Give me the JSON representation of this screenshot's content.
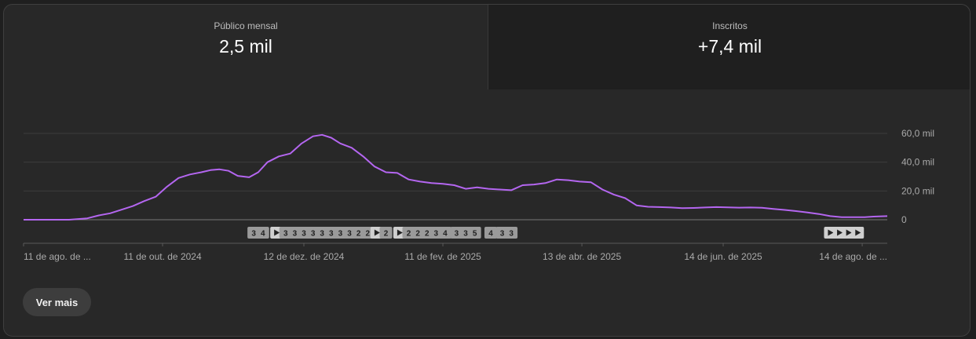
{
  "tabs": [
    {
      "label": "Público mensal",
      "value": "2,5 mil"
    },
    {
      "label": "Inscritos",
      "value": "+7,4 mil"
    }
  ],
  "more_button": "Ver mais",
  "colors": {
    "line": "#b466f0",
    "grid": "#3c3c3c",
    "axis_text": "#aaaaaa",
    "marker": "#9a9a9a"
  },
  "chart_data": {
    "type": "line",
    "x_start": "11 de ago. de 2024",
    "x_end": "25 de ago. de 2025",
    "ylim": [
      0,
      60000
    ],
    "yticks": [
      {
        "value": 0,
        "label": "0"
      },
      {
        "value": 20000,
        "label": "20,0 mil"
      },
      {
        "value": 40000,
        "label": "40,0 mil"
      },
      {
        "value": 60000,
        "label": "60,0 mil"
      }
    ],
    "xticks": [
      {
        "date": "2024-08-11",
        "label": "11 de ago. de ..."
      },
      {
        "date": "2024-10-11",
        "label": "11 de out. de 2024"
      },
      {
        "date": "2024-12-12",
        "label": "12 de dez. de 2024"
      },
      {
        "date": "2025-02-11",
        "label": "11 de fev. de 2025"
      },
      {
        "date": "2025-04-13",
        "label": "13 de abr. de 2025"
      },
      {
        "date": "2025-06-14",
        "label": "14 de jun. de 2025"
      },
      {
        "date": "2025-08-14",
        "label": "14 de ago. de ..."
      }
    ],
    "series": [
      {
        "points": [
          [
            "2024-08-11",
            0
          ],
          [
            "2024-08-17",
            0
          ],
          [
            "2024-08-25",
            0
          ],
          [
            "2024-08-31",
            0
          ],
          [
            "2024-09-04",
            500
          ],
          [
            "2024-09-08",
            1000
          ],
          [
            "2024-09-13",
            3000
          ],
          [
            "2024-09-18",
            4500
          ],
          [
            "2024-09-23",
            7000
          ],
          [
            "2024-09-28",
            9500
          ],
          [
            "2024-10-03",
            13000
          ],
          [
            "2024-10-08",
            16000
          ],
          [
            "2024-10-13",
            23000
          ],
          [
            "2024-10-18",
            29000
          ],
          [
            "2024-10-23",
            31500
          ],
          [
            "2024-10-28",
            33000
          ],
          [
            "2024-11-01",
            34500
          ],
          [
            "2024-11-05",
            35000
          ],
          [
            "2024-11-09",
            34000
          ],
          [
            "2024-11-13",
            30500
          ],
          [
            "2024-11-18",
            29500
          ],
          [
            "2024-11-22",
            33000
          ],
          [
            "2024-11-26",
            40000
          ],
          [
            "2024-12-01",
            44000
          ],
          [
            "2024-12-06",
            46000
          ],
          [
            "2024-12-11",
            53000
          ],
          [
            "2024-12-16",
            58000
          ],
          [
            "2024-12-20",
            59000
          ],
          [
            "2024-12-24",
            57000
          ],
          [
            "2024-12-28",
            53000
          ],
          [
            "2025-01-02",
            50000
          ],
          [
            "2025-01-07",
            44000
          ],
          [
            "2025-01-12",
            37000
          ],
          [
            "2025-01-17",
            33000
          ],
          [
            "2025-01-22",
            32500
          ],
          [
            "2025-01-27",
            28000
          ],
          [
            "2025-02-01",
            26500
          ],
          [
            "2025-02-06",
            25500
          ],
          [
            "2025-02-11",
            25000
          ],
          [
            "2025-02-16",
            24000
          ],
          [
            "2025-02-21",
            21500
          ],
          [
            "2025-02-26",
            22500
          ],
          [
            "2025-03-03",
            21500
          ],
          [
            "2025-03-08",
            21000
          ],
          [
            "2025-03-13",
            20500
          ],
          [
            "2025-03-18",
            24000
          ],
          [
            "2025-03-23",
            24500
          ],
          [
            "2025-03-28",
            25500
          ],
          [
            "2025-04-02",
            28000
          ],
          [
            "2025-04-07",
            27500
          ],
          [
            "2025-04-12",
            26500
          ],
          [
            "2025-04-17",
            26000
          ],
          [
            "2025-04-22",
            21000
          ],
          [
            "2025-04-27",
            17500
          ],
          [
            "2025-05-02",
            15000
          ],
          [
            "2025-05-07",
            10000
          ],
          [
            "2025-05-12",
            9000
          ],
          [
            "2025-05-17",
            8800
          ],
          [
            "2025-05-22",
            8500
          ],
          [
            "2025-05-27",
            8000
          ],
          [
            "2025-06-01",
            8200
          ],
          [
            "2025-06-06",
            8500
          ],
          [
            "2025-06-11",
            8800
          ],
          [
            "2025-06-16",
            8600
          ],
          [
            "2025-06-21",
            8400
          ],
          [
            "2025-06-26",
            8500
          ],
          [
            "2025-07-01",
            8300
          ],
          [
            "2025-07-06",
            7500
          ],
          [
            "2025-07-11",
            6800
          ],
          [
            "2025-07-16",
            6000
          ],
          [
            "2025-07-21",
            5000
          ],
          [
            "2025-07-26",
            4000
          ],
          [
            "2025-07-31",
            2500
          ],
          [
            "2025-08-05",
            1800
          ],
          [
            "2025-08-10",
            1800
          ],
          [
            "2025-08-15",
            1800
          ],
          [
            "2025-08-19",
            2200
          ],
          [
            "2025-08-25",
            2500
          ]
        ]
      }
    ],
    "markers": [
      {
        "date": "2024-11-20",
        "kind": "number",
        "label": "3"
      },
      {
        "date": "2024-11-24",
        "kind": "number",
        "label": "4"
      },
      {
        "date": "2024-11-30",
        "kind": "video",
        "label": ""
      },
      {
        "date": "2024-12-04",
        "kind": "number",
        "label": "3"
      },
      {
        "date": "2024-12-08",
        "kind": "number",
        "label": "3"
      },
      {
        "date": "2024-12-12",
        "kind": "number",
        "label": "3"
      },
      {
        "date": "2024-12-16",
        "kind": "number",
        "label": "3"
      },
      {
        "date": "2024-12-20",
        "kind": "number",
        "label": "3"
      },
      {
        "date": "2024-12-24",
        "kind": "number",
        "label": "3"
      },
      {
        "date": "2024-12-28",
        "kind": "number",
        "label": "3"
      },
      {
        "date": "2025-01-01",
        "kind": "number",
        "label": "3"
      },
      {
        "date": "2025-01-05",
        "kind": "number",
        "label": "2"
      },
      {
        "date": "2025-01-09",
        "kind": "number",
        "label": "2"
      },
      {
        "date": "2025-01-13",
        "kind": "video",
        "label": ""
      },
      {
        "date": "2025-01-17",
        "kind": "number",
        "label": "2"
      },
      {
        "date": "2025-01-23",
        "kind": "video",
        "label": ""
      },
      {
        "date": "2025-01-27",
        "kind": "number",
        "label": "2"
      },
      {
        "date": "2025-01-31",
        "kind": "number",
        "label": "2"
      },
      {
        "date": "2025-02-04",
        "kind": "number",
        "label": "2"
      },
      {
        "date": "2025-02-08",
        "kind": "number",
        "label": "3"
      },
      {
        "date": "2025-02-12",
        "kind": "number",
        "label": "4"
      },
      {
        "date": "2025-02-17",
        "kind": "number",
        "label": "3"
      },
      {
        "date": "2025-02-21",
        "kind": "number",
        "label": "3"
      },
      {
        "date": "2025-02-25",
        "kind": "number",
        "label": "5"
      },
      {
        "date": "2025-03-04",
        "kind": "number",
        "label": "4"
      },
      {
        "date": "2025-03-09",
        "kind": "number",
        "label": "3"
      },
      {
        "date": "2025-03-13",
        "kind": "number",
        "label": "3"
      },
      {
        "date": "2025-07-31",
        "kind": "video",
        "label": ""
      },
      {
        "date": "2025-08-04",
        "kind": "video",
        "label": ""
      },
      {
        "date": "2025-08-08",
        "kind": "video",
        "label": ""
      },
      {
        "date": "2025-08-12",
        "kind": "video",
        "label": ""
      }
    ]
  }
}
